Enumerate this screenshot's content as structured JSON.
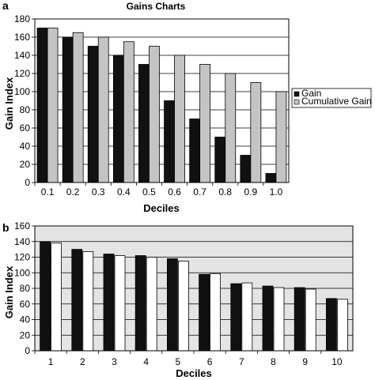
{
  "chart_data": [
    {
      "panel_label": "a",
      "type": "bar",
      "title": "Gains Charts",
      "xlabel": "Deciles",
      "ylabel": "Gain Index",
      "categories": [
        "0.1",
        "0.2",
        "0.3",
        "0.4",
        "0.5",
        "0.6",
        "0.7",
        "0.8",
        "0.9",
        "1.0"
      ],
      "ylim": [
        0,
        180
      ],
      "yticks": [
        0,
        20,
        40,
        60,
        80,
        100,
        120,
        140,
        160,
        180
      ],
      "grid": true,
      "legend_position": "right",
      "series": [
        {
          "name": "Gain",
          "color": "#111111",
          "values": [
            170,
            160,
            150,
            140,
            130,
            90,
            70,
            50,
            30,
            10
          ]
        },
        {
          "name": "Cumulative Gain",
          "color": "#c4c4c4",
          "values": [
            170,
            165,
            160,
            155,
            150,
            140,
            130,
            120,
            110,
            100
          ]
        }
      ]
    },
    {
      "panel_label": "b",
      "type": "bar",
      "title": "",
      "xlabel": "Deciles",
      "ylabel": "Gain Index",
      "categories": [
        "1",
        "2",
        "3",
        "4",
        "5",
        "6",
        "7",
        "8",
        "9",
        "10"
      ],
      "ylim": [
        0,
        160
      ],
      "yticks": [
        0,
        20,
        40,
        60,
        80,
        100,
        120,
        140,
        160
      ],
      "grid": true,
      "background": "#e4e4e4",
      "series": [
        {
          "color": "#111111",
          "values": [
            140,
            130,
            124,
            122,
            118,
            98,
            86,
            83,
            81,
            67
          ]
        },
        {
          "color": "#ffffff",
          "values": [
            138,
            127,
            122,
            120,
            115,
            99,
            87,
            81,
            79,
            66
          ]
        }
      ]
    }
  ]
}
